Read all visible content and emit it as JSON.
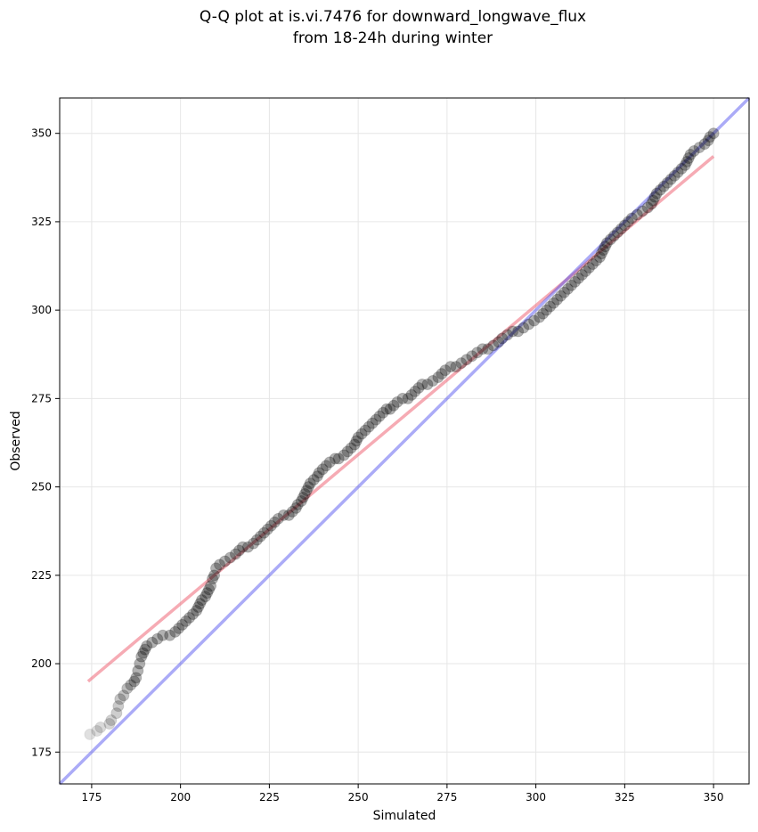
{
  "chart_data": {
    "type": "scatter",
    "title_line1": "Q-Q plot at is.vi.7476 for downward_longwave_flux",
    "title_line2": "from 18-24h during winter",
    "xlabel": "Simulated",
    "ylabel": "Observed",
    "xlim": [
      166,
      360
    ],
    "ylim": [
      166,
      360
    ],
    "x_ticks": [
      175,
      200,
      225,
      250,
      275,
      300,
      325,
      350
    ],
    "y_ticks": [
      175,
      200,
      225,
      250,
      275,
      300,
      325,
      350
    ],
    "grid": true,
    "points_description_free": true,
    "points": [
      [
        174.5,
        180
      ],
      [
        176.5,
        181
      ],
      [
        177.5,
        182
      ],
      [
        180.0,
        183
      ],
      [
        180.5,
        184
      ],
      [
        182.0,
        186
      ],
      [
        182.5,
        188
      ],
      [
        183.0,
        190
      ],
      [
        184.0,
        191
      ],
      [
        185.0,
        193
      ],
      [
        186.0,
        194
      ],
      [
        187.0,
        195
      ],
      [
        187.5,
        196
      ],
      [
        188.0,
        198
      ],
      [
        188.5,
        200
      ],
      [
        189.0,
        202
      ],
      [
        189.5,
        203
      ],
      [
        190.0,
        204
      ],
      [
        190.5,
        205
      ],
      [
        192.0,
        206
      ],
      [
        193.5,
        207
      ],
      [
        195.0,
        208
      ],
      [
        197.0,
        208
      ],
      [
        198.5,
        209
      ],
      [
        199.5,
        210
      ],
      [
        200.5,
        211
      ],
      [
        201.5,
        212
      ],
      [
        202.5,
        213
      ],
      [
        203.5,
        214
      ],
      [
        204.5,
        215
      ],
      [
        205.0,
        216
      ],
      [
        205.5,
        217
      ],
      [
        206.0,
        218
      ],
      [
        207.0,
        219
      ],
      [
        207.5,
        220
      ],
      [
        208.0,
        221
      ],
      [
        208.5,
        222
      ],
      [
        209.0,
        224
      ],
      [
        209.5,
        225
      ],
      [
        210.0,
        227
      ],
      [
        211.0,
        228
      ],
      [
        212.5,
        229
      ],
      [
        214.0,
        230
      ],
      [
        215.5,
        231
      ],
      [
        216.5,
        232
      ],
      [
        217.5,
        233
      ],
      [
        219.0,
        233
      ],
      [
        220.5,
        234
      ],
      [
        221.5,
        235
      ],
      [
        222.5,
        236
      ],
      [
        223.5,
        237
      ],
      [
        224.5,
        238
      ],
      [
        225.5,
        239
      ],
      [
        226.5,
        240
      ],
      [
        227.5,
        241
      ],
      [
        229.0,
        242
      ],
      [
        230.5,
        242
      ],
      [
        231.5,
        243
      ],
      [
        232.5,
        244
      ],
      [
        233.0,
        245
      ],
      [
        234.0,
        246
      ],
      [
        234.5,
        247
      ],
      [
        235.0,
        248
      ],
      [
        235.5,
        249
      ],
      [
        236.0,
        250
      ],
      [
        236.5,
        251
      ],
      [
        237.5,
        252
      ],
      [
        238.5,
        253
      ],
      [
        239.0,
        254
      ],
      [
        240.0,
        255
      ],
      [
        241.0,
        256
      ],
      [
        242.0,
        257
      ],
      [
        243.5,
        258
      ],
      [
        244.5,
        258
      ],
      [
        246.0,
        259
      ],
      [
        247.0,
        260
      ],
      [
        248.0,
        261
      ],
      [
        249.0,
        262
      ],
      [
        249.5,
        263
      ],
      [
        250.0,
        264
      ],
      [
        251.0,
        265
      ],
      [
        252.0,
        266
      ],
      [
        253.0,
        267
      ],
      [
        254.0,
        268
      ],
      [
        255.0,
        269
      ],
      [
        256.0,
        270
      ],
      [
        257.0,
        271
      ],
      [
        258.0,
        272
      ],
      [
        259.0,
        272
      ],
      [
        260.0,
        273
      ],
      [
        261.0,
        274
      ],
      [
        262.5,
        275
      ],
      [
        264.0,
        275
      ],
      [
        265.0,
        276
      ],
      [
        266.0,
        277
      ],
      [
        267.0,
        278
      ],
      [
        268.0,
        279
      ],
      [
        269.5,
        279
      ],
      [
        271.0,
        280
      ],
      [
        272.5,
        281
      ],
      [
        273.5,
        282
      ],
      [
        274.5,
        283
      ],
      [
        276.0,
        284
      ],
      [
        277.5,
        284
      ],
      [
        279.0,
        285
      ],
      [
        280.5,
        286
      ],
      [
        282.0,
        287
      ],
      [
        283.5,
        288
      ],
      [
        285.0,
        289
      ],
      [
        286.5,
        289
      ],
      [
        288.0,
        290
      ],
      [
        289.5,
        291
      ],
      [
        290.5,
        292
      ],
      [
        292.0,
        293
      ],
      [
        293.5,
        294
      ],
      [
        295.0,
        294
      ],
      [
        296.5,
        295
      ],
      [
        298.0,
        296
      ],
      [
        299.5,
        297
      ],
      [
        301.0,
        298
      ],
      [
        302.0,
        299
      ],
      [
        303.0,
        300
      ],
      [
        304.0,
        301
      ],
      [
        305.0,
        302
      ],
      [
        306.0,
        303
      ],
      [
        307.0,
        304
      ],
      [
        308.0,
        305
      ],
      [
        309.0,
        306
      ],
      [
        310.0,
        307
      ],
      [
        311.0,
        308
      ],
      [
        312.0,
        309
      ],
      [
        313.0,
        310
      ],
      [
        314.0,
        311
      ],
      [
        315.0,
        312
      ],
      [
        316.0,
        313
      ],
      [
        317.0,
        314
      ],
      [
        318.0,
        315
      ],
      [
        318.5,
        316
      ],
      [
        319.0,
        317
      ],
      [
        319.5,
        318
      ],
      [
        320.0,
        319
      ],
      [
        321.0,
        320
      ],
      [
        322.0,
        321
      ],
      [
        323.0,
        322
      ],
      [
        324.0,
        323
      ],
      [
        325.0,
        324
      ],
      [
        326.0,
        325
      ],
      [
        327.0,
        326
      ],
      [
        328.5,
        327
      ],
      [
        330.0,
        328
      ],
      [
        331.5,
        329
      ],
      [
        332.5,
        330
      ],
      [
        333.0,
        331
      ],
      [
        333.5,
        332
      ],
      [
        334.0,
        333
      ],
      [
        335.0,
        334
      ],
      [
        336.0,
        335
      ],
      [
        337.0,
        336
      ],
      [
        338.0,
        337
      ],
      [
        339.0,
        338
      ],
      [
        340.0,
        339
      ],
      [
        341.0,
        340
      ],
      [
        342.0,
        341
      ],
      [
        342.5,
        342
      ],
      [
        343.0,
        343
      ],
      [
        343.5,
        344
      ],
      [
        344.5,
        345
      ],
      [
        346.0,
        346
      ],
      [
        347.5,
        347
      ],
      [
        348.5,
        348
      ],
      [
        349.0,
        349
      ],
      [
        350.0,
        350
      ]
    ],
    "lines": [
      {
        "color": "#ee6677",
        "alpha": 0.55,
        "x": [
          174,
          350
        ],
        "y": [
          195,
          343.5
        ]
      },
      {
        "color": "#4444ee",
        "alpha": 0.45,
        "x": [
          166,
          360
        ],
        "y": [
          166,
          360
        ]
      }
    ]
  }
}
